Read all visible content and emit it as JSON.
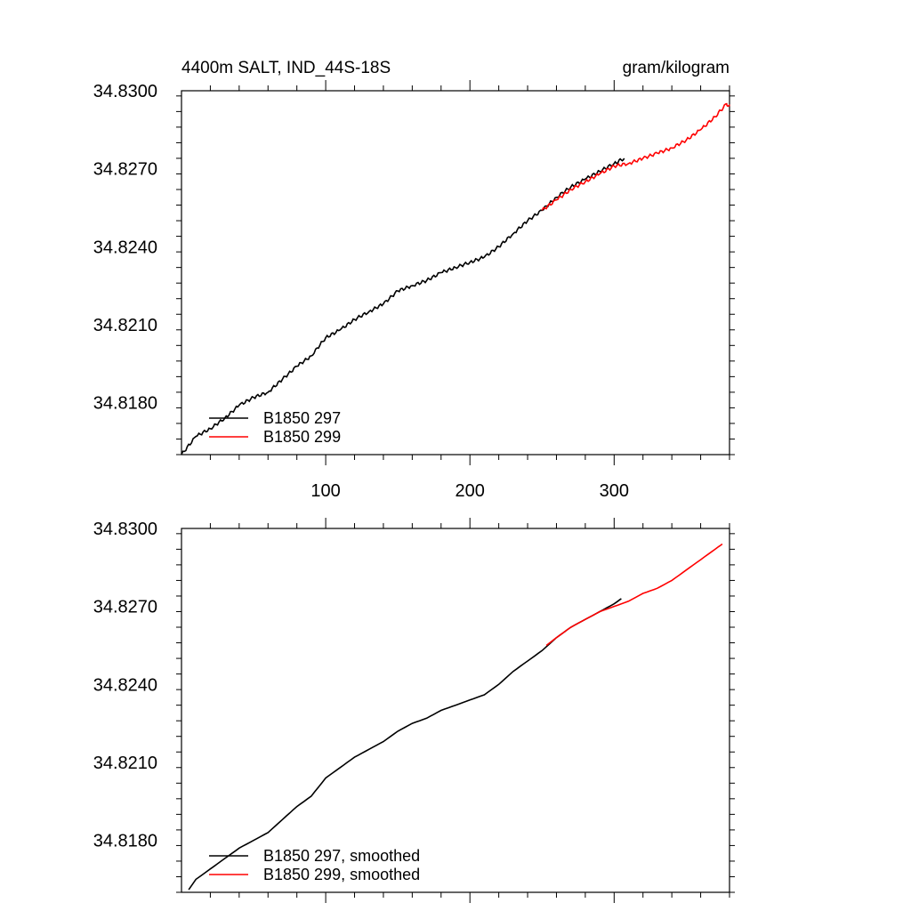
{
  "figure": {
    "title_left": "4400m SALT, IND_44S-18S",
    "title_right": "gram/kilogram"
  },
  "chart_data": [
    {
      "type": "line",
      "title": "4400m SALT, IND_44S-18S",
      "units": "gram/kilogram",
      "xlim": [
        0,
        380
      ],
      "ylim": [
        34.816,
        34.83
      ],
      "y_ticks": [
        "34.8300",
        "34.8270",
        "34.8240",
        "34.8210",
        "34.8180"
      ],
      "y_tick_values": [
        34.83,
        34.827,
        34.824,
        34.821,
        34.818
      ],
      "x_ticks": [
        "100",
        "200",
        "300"
      ],
      "x_tick_values": [
        100,
        200,
        300
      ],
      "legend": "bottom-left",
      "grid": false,
      "series": [
        {
          "name": "B1850 297",
          "color": "#000000",
          "x": [
            0,
            10,
            20,
            30,
            40,
            50,
            60,
            70,
            80,
            90,
            100,
            110,
            120,
            130,
            140,
            150,
            160,
            170,
            180,
            190,
            200,
            210,
            220,
            230,
            240,
            250,
            260,
            270,
            280,
            290,
            300,
            307
          ],
          "y": [
            34.816,
            34.8167,
            34.817,
            34.8174,
            34.8179,
            34.8182,
            34.8184,
            34.8189,
            34.8194,
            34.8198,
            34.8205,
            34.8208,
            34.8212,
            34.8215,
            34.8218,
            34.8223,
            34.8225,
            34.8227,
            34.823,
            34.8232,
            34.8234,
            34.8236,
            34.824,
            34.8245,
            34.825,
            34.8254,
            34.8259,
            34.8263,
            34.8266,
            34.8269,
            34.8272,
            34.8274
          ]
        },
        {
          "name": "B1850 299",
          "color": "#ff0000",
          "x": [
            250,
            260,
            270,
            280,
            290,
            300,
            310,
            320,
            330,
            340,
            350,
            360,
            370,
            378,
            380
          ],
          "y": [
            34.8254,
            34.8258,
            34.8262,
            34.8265,
            34.8268,
            34.8271,
            34.8272,
            34.8274,
            34.8276,
            34.8278,
            34.8281,
            34.8285,
            34.829,
            34.8295,
            34.8294
          ]
        }
      ]
    },
    {
      "type": "line",
      "xlim": [
        0,
        380
      ],
      "ylim": [
        34.816,
        34.83
      ],
      "y_ticks": [
        "34.8300",
        "34.8270",
        "34.8240",
        "34.8210",
        "34.8180"
      ],
      "y_tick_values": [
        34.83,
        34.827,
        34.824,
        34.821,
        34.818
      ],
      "legend": "bottom-left",
      "grid": false,
      "series": [
        {
          "name": "B1850 297, smoothed",
          "color": "#000000",
          "x": [
            5,
            10,
            20,
            30,
            40,
            50,
            60,
            70,
            80,
            90,
            100,
            110,
            120,
            130,
            140,
            150,
            160,
            170,
            180,
            190,
            200,
            210,
            220,
            230,
            240,
            250,
            260,
            270,
            280,
            290,
            300,
            305
          ],
          "y": [
            34.8161,
            34.8165,
            34.8169,
            34.8173,
            34.8177,
            34.818,
            34.8183,
            34.8188,
            34.8193,
            34.8197,
            34.8204,
            34.8208,
            34.8212,
            34.8215,
            34.8218,
            34.8222,
            34.8225,
            34.8227,
            34.823,
            34.8232,
            34.8234,
            34.8236,
            34.824,
            34.8245,
            34.8249,
            34.8253,
            34.8258,
            34.8262,
            34.8265,
            34.8268,
            34.8271,
            34.8273
          ]
        },
        {
          "name": "B1850 299, smoothed",
          "color": "#ff0000",
          "x": [
            253,
            260,
            270,
            280,
            290,
            300,
            310,
            320,
            330,
            340,
            350,
            360,
            370,
            375
          ],
          "y": [
            34.8255,
            34.8258,
            34.8262,
            34.8265,
            34.8268,
            34.827,
            34.8272,
            34.8275,
            34.8277,
            34.828,
            34.8284,
            34.8288,
            34.8292,
            34.8294
          ]
        }
      ]
    }
  ]
}
